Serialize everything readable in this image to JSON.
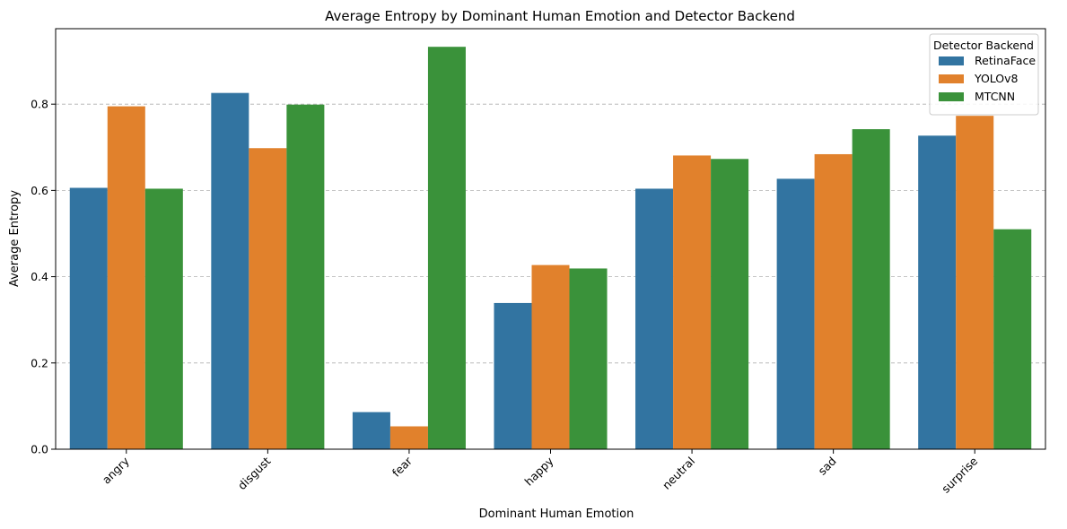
{
  "chart_data": {
    "type": "bar",
    "title": "Average Entropy by Dominant Human Emotion and Detector Backend",
    "xlabel": "Dominant Human Emotion",
    "ylabel": "Average Entropy",
    "categories": [
      "angry",
      "disgust",
      "fear",
      "happy",
      "neutral",
      "sad",
      "surprise"
    ],
    "series": [
      {
        "name": "RetinaFace",
        "color": "#3274a1",
        "values": [
          0.606,
          0.826,
          0.086,
          0.339,
          0.604,
          0.627,
          0.727
        ]
      },
      {
        "name": "YOLOv8",
        "color": "#e1812c",
        "values": [
          0.795,
          0.698,
          0.053,
          0.427,
          0.681,
          0.684,
          0.773
        ]
      },
      {
        "name": "MTCNN",
        "color": "#3a923a",
        "values": [
          0.604,
          0.799,
          0.933,
          0.419,
          0.673,
          0.742,
          0.51
        ]
      }
    ],
    "ylim": [
      0,
      0.975
    ],
    "yticks": [
      0.0,
      0.2,
      0.4,
      0.6,
      0.8
    ],
    "ytick_labels": [
      "0.0",
      "0.2",
      "0.4",
      "0.6",
      "0.8"
    ],
    "grid": "y-dashed",
    "legend": {
      "title": "Detector Backend",
      "placement": "top-right"
    }
  }
}
